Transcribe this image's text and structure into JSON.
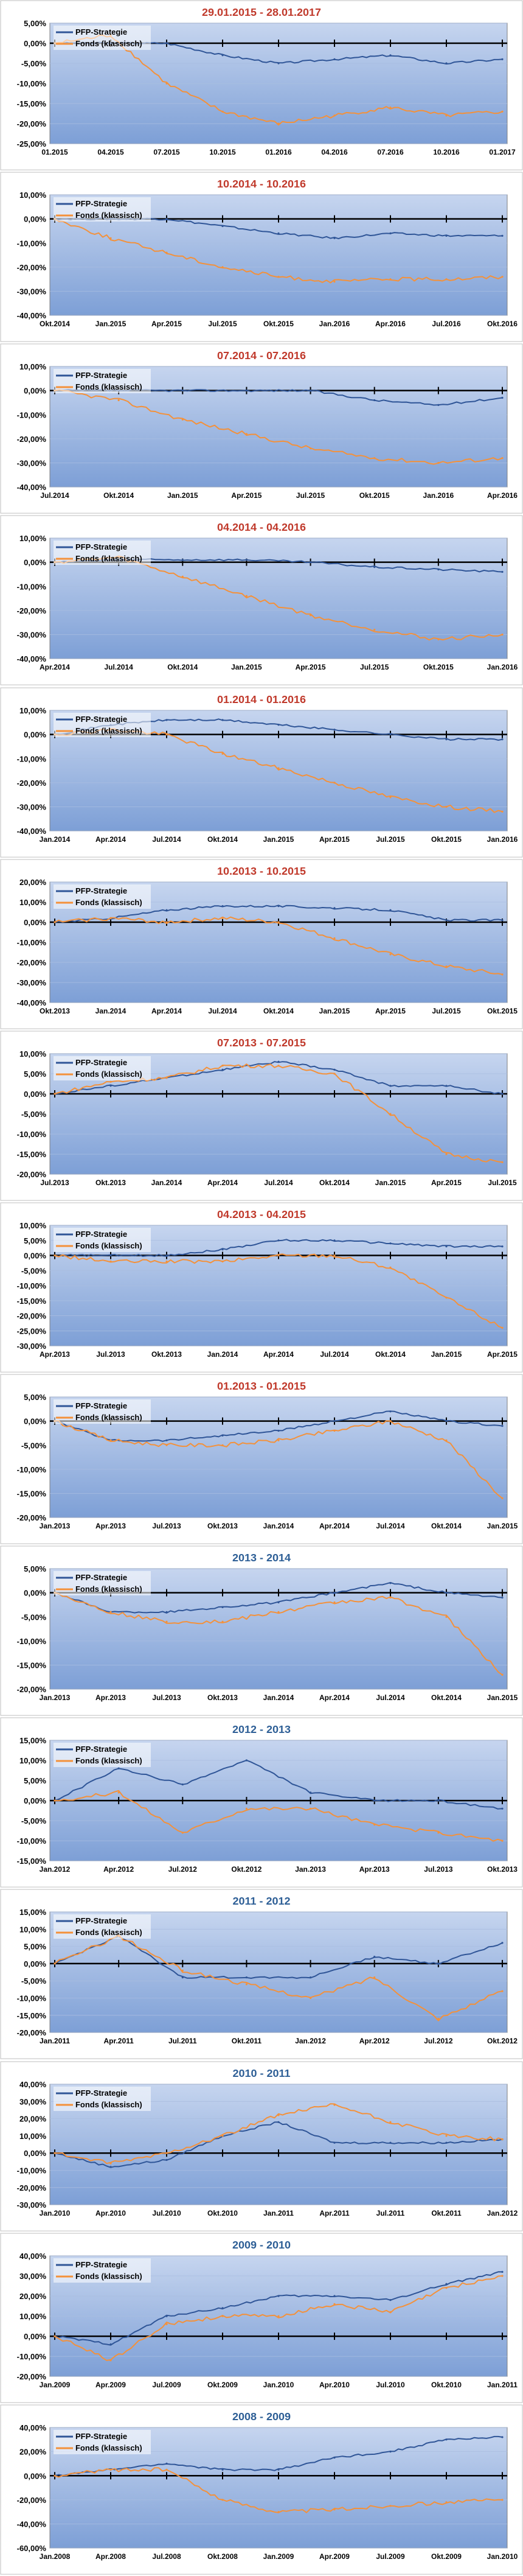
{
  "legend": {
    "strategy": "PFP-Strategie",
    "fund": "Fonds (klassisch)"
  },
  "colors": {
    "strategy": "#2f5597",
    "fund": "#f4913a",
    "title_red": "#c0392b",
    "title_blue": "#2e5f96",
    "plot_top": "#c6d5ef",
    "plot_bottom": "#7d9fd6"
  },
  "chart_data": [
    {
      "type": "line",
      "title": "29.01.2015 - 28.01.2017",
      "title_color": "red",
      "categories": [
        "01.2015",
        "04.2015",
        "07.2015",
        "10.2015",
        "01.2016",
        "04.2016",
        "07.2016",
        "10.2016",
        "01.2017"
      ],
      "y_ticks": [
        "5,00%",
        "0,00%",
        "-5,00%",
        "-10,00%",
        "-15,00%",
        "-20,00%",
        "-25,00%"
      ],
      "ylim": [
        -25,
        5
      ],
      "series": [
        {
          "name": "PFP-Strategie",
          "values": [
            0,
            0,
            0,
            -3,
            -5,
            -4,
            -3,
            -5,
            -4
          ]
        },
        {
          "name": "Fonds (klassisch)",
          "values": [
            0,
            2,
            -10,
            -17,
            -20,
            -18,
            -16,
            -18,
            -17
          ]
        }
      ]
    },
    {
      "type": "line",
      "title": "10.2014 - 10.2016",
      "title_color": "red",
      "categories": [
        "Okt.2014",
        "Jan.2015",
        "Apr.2015",
        "Jul.2015",
        "Okt.2015",
        "Jan.2016",
        "Apr.2016",
        "Jul.2016",
        "Okt.2016"
      ],
      "y_ticks": [
        "10,00%",
        "0,00%",
        "-10,00%",
        "-20,00%",
        "-30,00%",
        "-40,00%"
      ],
      "ylim": [
        -40,
        10
      ],
      "series": [
        {
          "name": "PFP-Strategie",
          "values": [
            0,
            0,
            0,
            -3,
            -6,
            -8,
            -6,
            -7,
            -7
          ]
        },
        {
          "name": "Fonds (klassisch)",
          "values": [
            0,
            -8,
            -14,
            -20,
            -24,
            -26,
            -25,
            -25,
            -24
          ]
        }
      ]
    },
    {
      "type": "line",
      "title": "07.2014 - 07.2016",
      "title_color": "red",
      "categories": [
        "Jul.2014",
        "Okt.2014",
        "Jan.2015",
        "Apr.2015",
        "Jul.2015",
        "Okt.2015",
        "Jan.2016",
        "Apr.2016"
      ],
      "y_ticks": [
        "10,00%",
        "0,00%",
        "-10,00%",
        "-20,00%",
        "-30,00%",
        "-40,00%"
      ],
      "ylim": [
        -40,
        10
      ],
      "series": [
        {
          "name": "PFP-Strategie",
          "values": [
            0,
            0,
            0,
            0,
            0,
            -4,
            -6,
            -3
          ]
        },
        {
          "name": "Fonds (klassisch)",
          "values": [
            0,
            -4,
            -12,
            -18,
            -24,
            -28,
            -30,
            -28
          ]
        }
      ]
    },
    {
      "type": "line",
      "title": "04.2014 - 04.2016",
      "title_color": "red",
      "categories": [
        "Apr.2014",
        "Jul.2014",
        "Okt.2014",
        "Jan.2015",
        "Apr.2015",
        "Jul.2015",
        "Okt.2015",
        "Jan.2016"
      ],
      "y_ticks": [
        "10,00%",
        "0,00%",
        "-10,00%",
        "-20,00%",
        "-30,00%",
        "-40,00%"
      ],
      "ylim": [
        -40,
        10
      ],
      "series": [
        {
          "name": "PFP-Strategie",
          "values": [
            0,
            1,
            1,
            1,
            0,
            -2,
            -3,
            -4
          ]
        },
        {
          "name": "Fonds (klassisch)",
          "values": [
            0,
            2,
            -6,
            -14,
            -22,
            -28,
            -32,
            -30
          ]
        }
      ]
    },
    {
      "type": "line",
      "title": "01.2014 - 01.2016",
      "title_color": "red",
      "categories": [
        "Jan.2014",
        "Apr.2014",
        "Jul.2014",
        "Okt.2014",
        "Jan.2015",
        "Apr.2015",
        "Jul.2015",
        "Okt.2015",
        "Jan.2016"
      ],
      "y_ticks": [
        "10,00%",
        "0,00%",
        "-10,00%",
        "-20,00%",
        "-30,00%",
        "-40,00%"
      ],
      "ylim": [
        -40,
        10
      ],
      "series": [
        {
          "name": "PFP-Strategie",
          "values": [
            0,
            4,
            6,
            6,
            4,
            2,
            0,
            -2,
            -2
          ]
        },
        {
          "name": "Fonds (klassisch)",
          "values": [
            0,
            2,
            0,
            -8,
            -14,
            -20,
            -26,
            -30,
            -32
          ]
        }
      ]
    },
    {
      "type": "line",
      "title": "10.2013 - 10.2015",
      "title_color": "red",
      "categories": [
        "Okt.2013",
        "Jan.2014",
        "Apr.2014",
        "Jul.2014",
        "Okt.2014",
        "Jan.2015",
        "Apr.2015",
        "Jul.2015",
        "Okt.2015"
      ],
      "y_ticks": [
        "20,00%",
        "10,00%",
        "0,00%",
        "-10,00%",
        "-20,00%",
        "-30,00%",
        "-40,00%"
      ],
      "ylim": [
        -40,
        20
      ],
      "series": [
        {
          "name": "PFP-Strategie",
          "values": [
            0,
            2,
            6,
            8,
            8,
            7,
            6,
            1,
            1
          ]
        },
        {
          "name": "Fonds (klassisch)",
          "values": [
            0,
            2,
            0,
            2,
            0,
            -8,
            -16,
            -22,
            -26
          ]
        }
      ]
    },
    {
      "type": "line",
      "title": "07.2013 - 07.2015",
      "title_color": "red",
      "categories": [
        "Jul.2013",
        "Okt.2013",
        "Jan.2014",
        "Apr.2014",
        "Jul.2014",
        "Okt.2014",
        "Jan.2015",
        "Apr.2015",
        "Jul.2015"
      ],
      "y_ticks": [
        "10,00%",
        "5,00%",
        "0,00%",
        "-5,00%",
        "-10,00%",
        "-15,00%",
        "-20,00%"
      ],
      "ylim": [
        -20,
        10
      ],
      "series": [
        {
          "name": "PFP-Strategie",
          "values": [
            0,
            2,
            4,
            6,
            8,
            6,
            2,
            2,
            0
          ]
        },
        {
          "name": "Fonds (klassisch)",
          "values": [
            0,
            3,
            4,
            7,
            7,
            5,
            -5,
            -15,
            -17
          ]
        }
      ]
    },
    {
      "type": "line",
      "title": "04.2013 - 04.2015",
      "title_color": "red",
      "categories": [
        "Apr.2013",
        "Jul.2013",
        "Okt.2013",
        "Jan.2014",
        "Apr.2014",
        "Jul.2014",
        "Okt.2014",
        "Jan.2015",
        "Apr.2015"
      ],
      "y_ticks": [
        "10,00%",
        "5,00%",
        "0,00%",
        "-5,00%",
        "-10,00%",
        "-15,00%",
        "-20,00%",
        "-25,00%",
        "-30,00%"
      ],
      "ylim": [
        -30,
        10
      ],
      "series": [
        {
          "name": "PFP-Strategie",
          "values": [
            0,
            0,
            0,
            2,
            5,
            5,
            4,
            3,
            3
          ]
        },
        {
          "name": "Fonds (klassisch)",
          "values": [
            0,
            -2,
            -2,
            -2,
            0,
            0,
            -4,
            -14,
            -24
          ]
        }
      ]
    },
    {
      "type": "line",
      "title": "01.2013 - 01.2015",
      "title_color": "red",
      "categories": [
        "Jan.2013",
        "Apr.2013",
        "Jul.2013",
        "Okt.2013",
        "Jan.2014",
        "Apr.2014",
        "Jul.2014",
        "Okt.2014",
        "Jan.2015"
      ],
      "y_ticks": [
        "5,00%",
        "0,00%",
        "-5,00%",
        "-10,00%",
        "-15,00%",
        "-20,00%"
      ],
      "ylim": [
        -20,
        5
      ],
      "series": [
        {
          "name": "PFP-Strategie",
          "values": [
            0,
            -4,
            -4,
            -3,
            -2,
            0,
            2,
            0,
            -1
          ]
        },
        {
          "name": "Fonds (klassisch)",
          "values": [
            0,
            -4,
            -5,
            -5,
            -4,
            -2,
            0,
            -4,
            -16
          ]
        }
      ]
    },
    {
      "type": "line",
      "title": "2013 - 2014",
      "title_color": "blue",
      "categories": [
        "Jan.2013",
        "Apr.2013",
        "Jul.2013",
        "Okt.2013",
        "Jan.2014",
        "Apr.2014",
        "Jul.2014",
        "Okt.2014",
        "Jan.2015"
      ],
      "y_ticks": [
        "5,00%",
        "0,00%",
        "-5,00%",
        "-10,00%",
        "-15,00%",
        "-20,00%"
      ],
      "ylim": [
        -20,
        5
      ],
      "series": [
        {
          "name": "PFP-Strategie",
          "values": [
            0,
            -4,
            -4,
            -3,
            -2,
            0,
            2,
            0,
            -1
          ]
        },
        {
          "name": "Fonds (klassisch)",
          "values": [
            0,
            -4,
            -6,
            -6,
            -4,
            -2,
            -1,
            -5,
            -17
          ]
        }
      ]
    },
    {
      "type": "line",
      "title": "2012 - 2013",
      "title_color": "blue",
      "categories": [
        "Jan.2012",
        "Apr.2012",
        "Jul.2012",
        "Okt.2012",
        "Jan.2013",
        "Apr.2013",
        "Jul.2013",
        "Okt.2013"
      ],
      "y_ticks": [
        "15,00%",
        "10,00%",
        "5,00%",
        "0,00%",
        "-5,00%",
        "-10,00%",
        "-15,00%"
      ],
      "ylim": [
        -15,
        15
      ],
      "series": [
        {
          "name": "PFP-Strategie",
          "values": [
            0,
            8,
            4,
            10,
            2,
            0,
            0,
            -2
          ]
        },
        {
          "name": "Fonds (klassisch)",
          "values": [
            0,
            2,
            -8,
            -2,
            -2,
            -6,
            -8,
            -10
          ]
        }
      ]
    },
    {
      "type": "line",
      "title": "2011 - 2012",
      "title_color": "blue",
      "categories": [
        "Jan.2011",
        "Apr.2011",
        "Jul.2011",
        "Okt.2011",
        "Jan.2012",
        "Apr.2012",
        "Jul.2012",
        "Okt.2012"
      ],
      "y_ticks": [
        "15,00%",
        "10,00%",
        "5,00%",
        "0,00%",
        "-5,00%",
        "-10,00%",
        "-15,00%",
        "-20,00%"
      ],
      "ylim": [
        -20,
        15
      ],
      "series": [
        {
          "name": "PFP-Strategie",
          "values": [
            0,
            8,
            -4,
            -4,
            -4,
            2,
            0,
            6
          ]
        },
        {
          "name": "Fonds (klassisch)",
          "values": [
            0,
            8,
            -2,
            -6,
            -10,
            -4,
            -16,
            -8
          ]
        }
      ]
    },
    {
      "type": "line",
      "title": "2010 - 2011",
      "title_color": "blue",
      "categories": [
        "Jan.2010",
        "Apr.2010",
        "Jul.2010",
        "Okt.2010",
        "Jan.2011",
        "Apr.2011",
        "Jul.2011",
        "Okt.2011",
        "Jan.2012"
      ],
      "y_ticks": [
        "40,00%",
        "30,00%",
        "20,00%",
        "10,00%",
        "0,00%",
        "-10,00%",
        "-20,00%",
        "-30,00%"
      ],
      "ylim": [
        -30,
        40
      ],
      "series": [
        {
          "name": "PFP-Strategie",
          "values": [
            0,
            -8,
            -4,
            10,
            18,
            6,
            6,
            6,
            8
          ]
        },
        {
          "name": "Fonds (klassisch)",
          "values": [
            0,
            -6,
            0,
            10,
            22,
            28,
            18,
            10,
            8
          ]
        }
      ]
    },
    {
      "type": "line",
      "title": "2009 - 2010",
      "title_color": "blue",
      "categories": [
        "Jan.2009",
        "Apr.2009",
        "Jul.2009",
        "Okt.2009",
        "Jan.2010",
        "Apr.2010",
        "Jul.2010",
        "Okt.2010",
        "Jan.2011"
      ],
      "y_ticks": [
        "40,00%",
        "30,00%",
        "20,00%",
        "10,00%",
        "0,00%",
        "-10,00%",
        "-20,00%"
      ],
      "ylim": [
        -20,
        40
      ],
      "series": [
        {
          "name": "PFP-Strategie",
          "values": [
            0,
            -4,
            10,
            14,
            20,
            20,
            18,
            26,
            32
          ]
        },
        {
          "name": "Fonds (klassisch)",
          "values": [
            0,
            -12,
            6,
            10,
            10,
            16,
            12,
            24,
            30
          ]
        }
      ]
    },
    {
      "type": "line",
      "title": "2008 - 2009",
      "title_color": "blue",
      "categories": [
        "Jan.2008",
        "Apr.2008",
        "Jul.2008",
        "Okt.2008",
        "Jan.2009",
        "Apr.2009",
        "Jul.2009",
        "Okt.2009",
        "Jan.2010"
      ],
      "y_ticks": [
        "40,00%",
        "20,00%",
        "0,00%",
        "-20,00%",
        "-40,00%",
        "-60,00%"
      ],
      "ylim": [
        -60,
        40
      ],
      "series": [
        {
          "name": "PFP-Strategie",
          "values": [
            0,
            5,
            10,
            5,
            5,
            15,
            20,
            30,
            32
          ]
        },
        {
          "name": "Fonds (klassisch)",
          "values": [
            0,
            5,
            5,
            -20,
            -30,
            -28,
            -25,
            -22,
            -20
          ]
        }
      ]
    }
  ]
}
